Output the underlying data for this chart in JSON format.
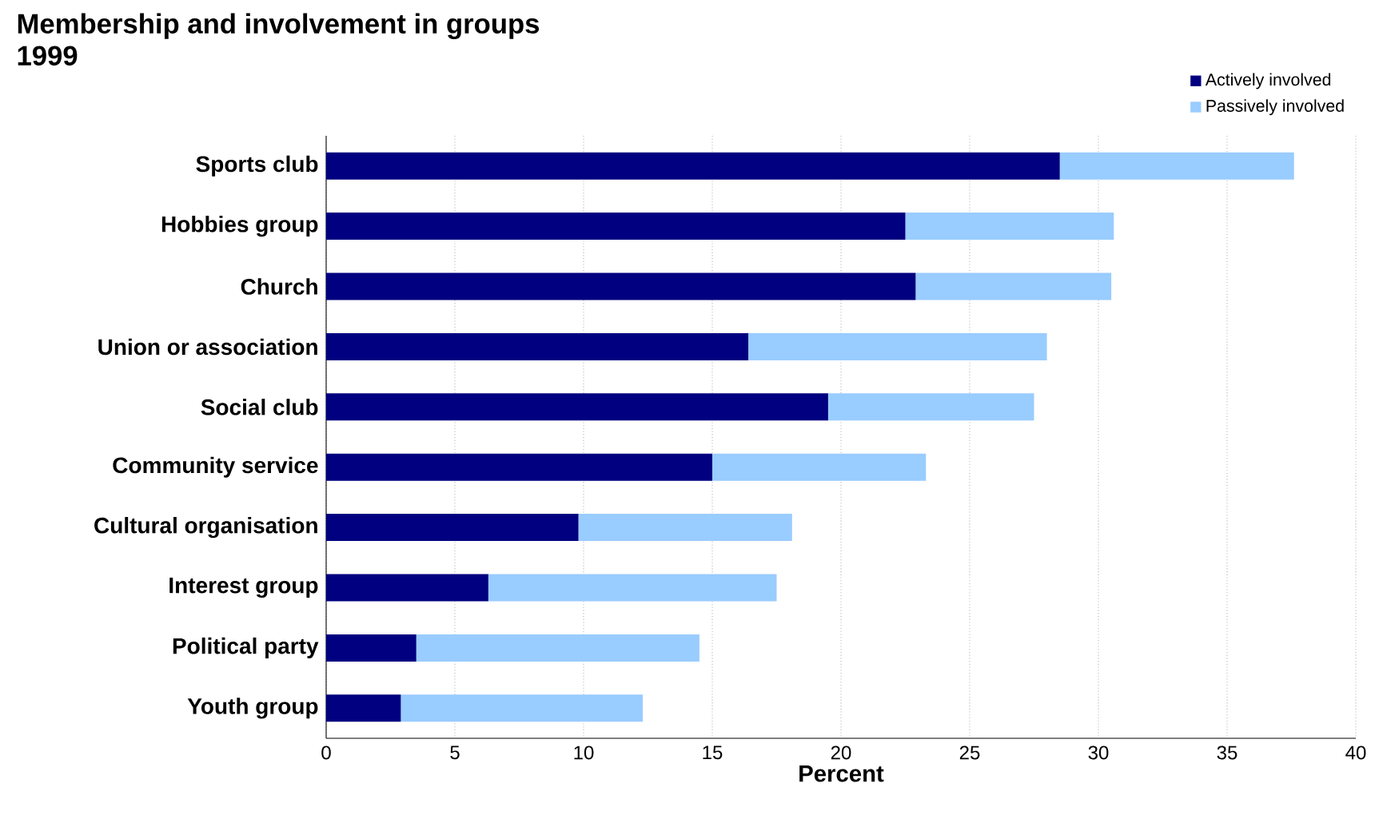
{
  "chart_data": {
    "type": "bar",
    "orientation": "horizontal",
    "stacked": true,
    "title": "Membership and involvement in groups",
    "subtitle": "1999",
    "xlabel": "Percent",
    "categories": [
      "Sports club",
      "Hobbies group",
      "Church",
      "Union or association",
      "Social club",
      "Community service",
      "Cultural organisation",
      "Interest group",
      "Political party",
      "Youth group"
    ],
    "series": [
      {
        "name": "Actively involved",
        "color": "#000080",
        "values": [
          28.5,
          22.5,
          22.9,
          16.4,
          19.5,
          15.0,
          9.8,
          6.3,
          3.5,
          2.9
        ]
      },
      {
        "name": "Passively involved",
        "color": "#99ccff",
        "values": [
          9.1,
          8.1,
          7.6,
          11.6,
          8.0,
          8.3,
          8.3,
          11.2,
          11.0,
          9.4
        ]
      }
    ],
    "xlim": [
      0,
      40
    ],
    "xticks": [
      0,
      5,
      10,
      15,
      20,
      25,
      30,
      35,
      40
    ],
    "grid": "x",
    "legend": "top right"
  }
}
